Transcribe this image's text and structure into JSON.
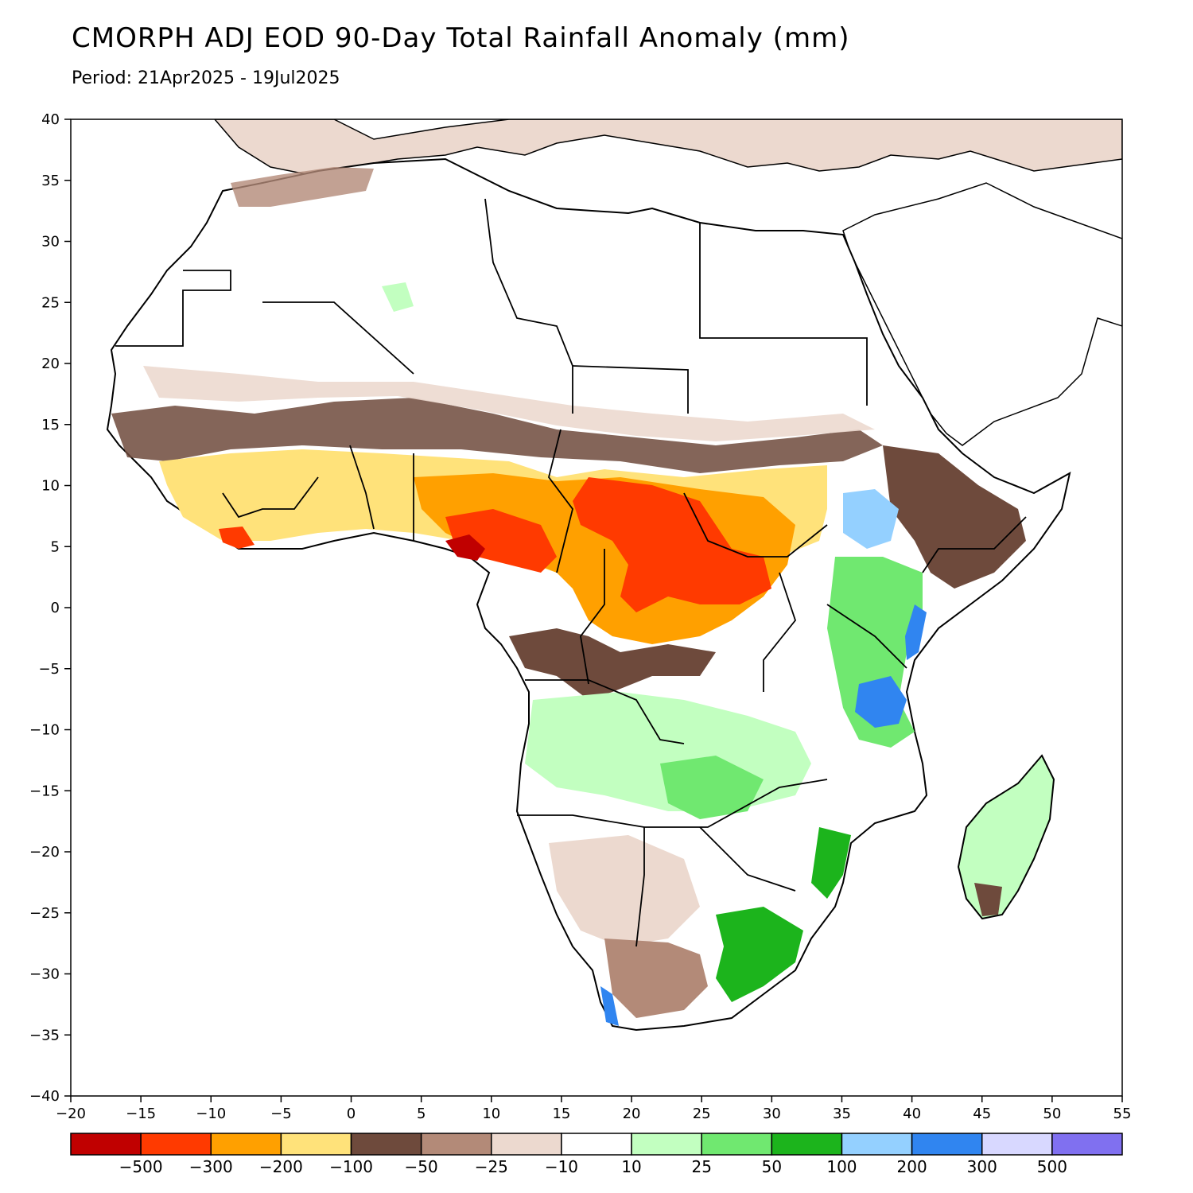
{
  "title": "CMORPH ADJ EOD 90-Day Total Rainfall Anomaly (mm)",
  "subtitle": "Period: 21Apr2025 - 19Jul2025",
  "map": {
    "lon_range": [
      -20,
      55
    ],
    "lat_range": [
      -40,
      40
    ],
    "lon_ticks": [
      -20,
      -15,
      -10,
      -5,
      0,
      5,
      10,
      15,
      20,
      25,
      30,
      35,
      40,
      45,
      50,
      55
    ],
    "lat_ticks": [
      40,
      35,
      30,
      25,
      20,
      15,
      10,
      5,
      0,
      -5,
      -10,
      -15,
      -20,
      -25,
      -30,
      -35,
      -40
    ],
    "lon_tick_labels": [
      "−20",
      "−15",
      "−10",
      "−5",
      "0",
      "5",
      "10",
      "15",
      "20",
      "25",
      "30",
      "35",
      "40",
      "45",
      "50",
      "55"
    ],
    "lat_tick_labels": [
      "40",
      "35",
      "30",
      "25",
      "20",
      "15",
      "10",
      "5",
      "0",
      "−5",
      "−10",
      "−15",
      "−20",
      "−25",
      "−30",
      "−35",
      "−40"
    ]
  },
  "colorbar": {
    "colors": [
      "#c00000",
      "#ff3a00",
      "#ffa000",
      "#ffe27a",
      "#6e4a3c",
      "#b38a78",
      "#ecd9cf",
      "#ffffff",
      "#c2ffc0",
      "#70e870",
      "#1cb41c",
      "#94d0ff",
      "#3085f0",
      "#d8d8ff",
      "#8070f0"
    ],
    "labels": [
      "−500",
      "−300",
      "−200",
      "−100",
      "−50",
      "−25",
      "−10",
      "10",
      "25",
      "50",
      "100",
      "200",
      "300",
      "500"
    ]
  },
  "anomaly_regions": [
    {
      "name": "sahel-dry",
      "class_color": "#6e4a3c"
    },
    {
      "name": "central-africa-deficit",
      "class_color": "#ffa000"
    },
    {
      "name": "cameroon-nigeria-severe",
      "class_color": "#c00000"
    },
    {
      "name": "east-africa-wet",
      "class_color": "#3085f0"
    },
    {
      "name": "southern-africa-wet",
      "class_color": "#1cb41c"
    }
  ]
}
